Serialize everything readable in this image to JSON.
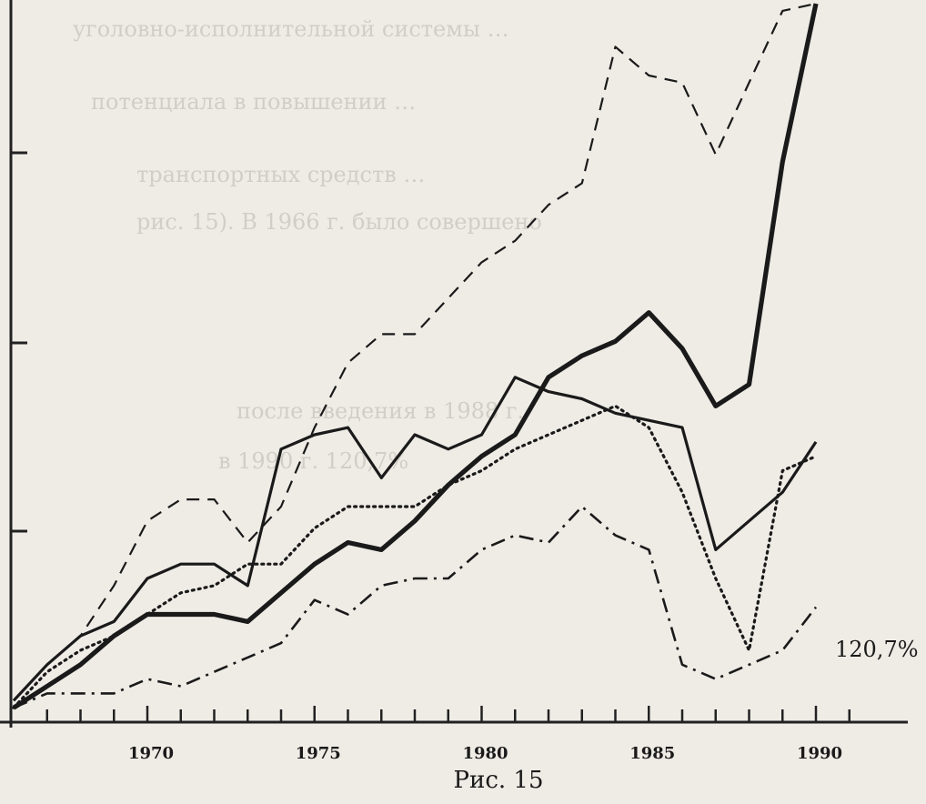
{
  "chart_data": {
    "type": "line",
    "title": "",
    "xlabel": "",
    "ylabel": "",
    "caption": "Рис. 15",
    "xlim": [
      1966,
      1992
    ],
    "ylim": [
      0,
      100
    ],
    "x_ticks": [
      1970,
      1975,
      1980,
      1985,
      1990
    ],
    "annotations": [
      {
        "text": "120,7%"
      }
    ],
    "series": [
      {
        "style": "dashed",
        "x": [
          1966,
          1967,
          1968,
          1969,
          1970,
          1971,
          1972,
          1973,
          1974,
          1975,
          1976,
          1977,
          1978,
          1979,
          1980,
          1981,
          1982,
          1983,
          1984,
          1985,
          1986,
          1987,
          1988,
          1989,
          1990
        ],
        "y": [
          3,
          8,
          12,
          19,
          28,
          31,
          31,
          25,
          30,
          41,
          50,
          54,
          54,
          59,
          64,
          67,
          72,
          75,
          94,
          90,
          89,
          79,
          89,
          99,
          100
        ]
      },
      {
        "style": "solid-thin",
        "x": [
          1966,
          1967,
          1968,
          1969,
          1970,
          1971,
          1972,
          1973,
          1974,
          1975,
          1976,
          1977,
          1978,
          1979,
          1980,
          1981,
          1982,
          1983,
          1984,
          1985,
          1986,
          1987,
          1988,
          1989,
          1990
        ],
        "y": [
          3,
          8,
          12,
          14,
          20,
          22,
          22,
          19,
          38,
          40,
          41,
          34,
          40,
          38,
          40,
          48,
          46,
          45,
          43,
          42,
          41,
          24,
          28,
          32,
          39
        ]
      },
      {
        "style": "dotted",
        "x": [
          1966,
          1967,
          1968,
          1969,
          1970,
          1971,
          1972,
          1973,
          1974,
          1975,
          1976,
          1977,
          1978,
          1979,
          1980,
          1981,
          1982,
          1983,
          1984,
          1985,
          1986,
          1987,
          1988,
          1989,
          1990
        ],
        "y": [
          2,
          7,
          10,
          12,
          15,
          18,
          19,
          22,
          22,
          27,
          30,
          30,
          30,
          33,
          35,
          38,
          40,
          42,
          44,
          41,
          32,
          20,
          10,
          35,
          37
        ]
      },
      {
        "style": "solid-thick",
        "x": [
          1966,
          1967,
          1968,
          1969,
          1970,
          1971,
          1972,
          1973,
          1974,
          1975,
          1976,
          1977,
          1978,
          1979,
          1980,
          1981,
          1982,
          1983,
          1984,
          1985,
          1986,
          1987,
          1988,
          1989,
          1990
        ],
        "y": [
          2,
          5,
          8,
          12,
          15,
          15,
          15,
          14,
          18,
          22,
          25,
          24,
          28,
          33,
          37,
          40,
          48,
          51,
          53,
          57,
          52,
          44,
          47,
          78,
          100
        ]
      },
      {
        "style": "dash-dot",
        "x": [
          1966,
          1967,
          1968,
          1969,
          1970,
          1971,
          1972,
          1973,
          1974,
          1975,
          1976,
          1977,
          1978,
          1979,
          1980,
          1981,
          1982,
          1983,
          1984,
          1985,
          1986,
          1987,
          1988,
          1989,
          1990
        ],
        "y": [
          2,
          4,
          4,
          4,
          6,
          5,
          7,
          9,
          11,
          17,
          15,
          19,
          20,
          20,
          24,
          26,
          25,
          30,
          26,
          24,
          8,
          6,
          8,
          10,
          16
        ]
      }
    ]
  },
  "background_text": [
    "уголовно-исполнительной системы …",
    "потенциала в повышении …",
    "транспортных средств …",
    "рис. 15). В 1966 г. было совершено",
    "после введения в 1988 г.",
    "в 1990 г. 120,7%"
  ]
}
